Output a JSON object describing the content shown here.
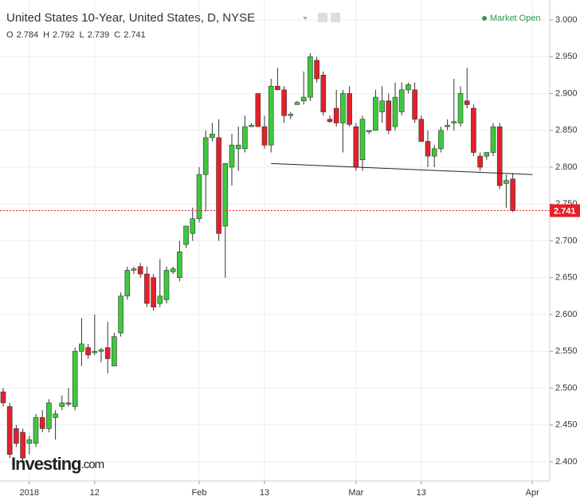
{
  "chart_data": {
    "type": "candlestick",
    "title": "United States 10-Year, United States, D, NYSE",
    "ohlc_header": [
      {
        "label": "O",
        "value": 2.784
      },
      {
        "label": "H",
        "value": 2.792
      },
      {
        "label": "L",
        "value": 2.739
      },
      {
        "label": "C",
        "value": 2.741
      }
    ],
    "status": "Market Open",
    "logo": {
      "name": "Investing",
      "suffix": ".com"
    },
    "last_price": {
      "value": 2.741,
      "label": "2.741",
      "color": "#e4202a"
    },
    "up_color": "#3cc93c",
    "down_color": "#e4202a",
    "grid": true,
    "categories": [
      null,
      null,
      null,
      null,
      "2018",
      null,
      null,
      null,
      null,
      null,
      null,
      null,
      null,
      null,
      "12",
      null,
      null,
      null,
      null,
      null,
      null,
      null,
      null,
      null,
      null,
      null,
      null,
      null,
      null,
      null,
      "Feb",
      null,
      null,
      null,
      null,
      null,
      null,
      null,
      null,
      null,
      "13",
      null,
      null,
      null,
      null,
      null,
      null,
      null,
      null,
      null,
      null,
      null,
      null,
      null,
      "Mar",
      null,
      null,
      null,
      null,
      null,
      null,
      null,
      null,
      null,
      "13",
      null,
      null,
      null,
      null,
      null,
      null,
      null,
      null,
      null,
      null,
      null,
      null,
      null,
      null,
      null,
      null,
      "Apr"
    ],
    "open": [
      2.495,
      2.475,
      2.445,
      2.44,
      2.425,
      2.425,
      2.46,
      2.445,
      2.46,
      2.475,
      2.478,
      2.475,
      2.55,
      2.555,
      2.548,
      2.55,
      2.555,
      2.53,
      2.575,
      2.625,
      2.66,
      2.665,
      2.655,
      2.65,
      2.615,
      2.62,
      2.658,
      2.65,
      2.695,
      2.71,
      2.73,
      2.79,
      2.84,
      2.84,
      2.72,
      2.8,
      2.825,
      2.825,
      2.855,
      2.9,
      2.855,
      2.83,
      2.91,
      2.905,
      2.87,
      2.885,
      2.89,
      2.895,
      2.945,
      2.925,
      2.865,
      2.88,
      2.86,
      2.9,
      2.855,
      2.81,
      2.848,
      2.85,
      2.875,
      2.89,
      2.855,
      2.875,
      2.905,
      2.905,
      2.865,
      2.835,
      2.815,
      2.825,
      2.855,
      2.86,
      2.86,
      2.89,
      2.88,
      2.815,
      2.815,
      2.82,
      2.855,
      2.778,
      2.784,
      null,
      null,
      null
    ],
    "high": [
      2.5,
      2.48,
      2.45,
      2.445,
      2.435,
      2.465,
      2.47,
      2.485,
      2.47,
      2.49,
      2.5,
      2.555,
      2.595,
      2.56,
      2.6,
      2.555,
      2.59,
      2.575,
      2.63,
      2.665,
      2.665,
      2.67,
      2.665,
      2.655,
      2.675,
      2.665,
      2.665,
      2.7,
      2.72,
      2.745,
      2.8,
      2.85,
      2.86,
      2.865,
      2.805,
      2.845,
      2.855,
      2.87,
      2.86,
      2.9,
      2.87,
      2.92,
      2.935,
      2.91,
      2.875,
      2.89,
      2.93,
      2.955,
      2.95,
      2.93,
      2.87,
      2.905,
      2.905,
      2.91,
      2.86,
      2.87,
      2.85,
      2.905,
      2.91,
      2.9,
      2.915,
      2.915,
      2.915,
      2.915,
      2.87,
      2.85,
      2.83,
      2.855,
      2.865,
      2.92,
      2.91,
      2.935,
      2.885,
      2.82,
      2.82,
      2.86,
      2.86,
      2.79,
      2.792,
      null,
      null,
      null
    ],
    "low": [
      2.475,
      2.405,
      2.42,
      2.4,
      2.41,
      2.42,
      2.44,
      2.44,
      2.43,
      2.47,
      2.475,
      2.47,
      2.53,
      2.54,
      2.545,
      2.535,
      2.52,
      2.53,
      2.57,
      2.62,
      2.655,
      2.65,
      2.61,
      2.605,
      2.61,
      2.615,
      2.655,
      2.645,
      2.69,
      2.7,
      2.725,
      2.74,
      2.835,
      2.7,
      2.65,
      2.775,
      2.795,
      2.82,
      2.855,
      2.855,
      2.825,
      2.82,
      2.905,
      2.86,
      2.865,
      2.885,
      2.885,
      2.89,
      2.915,
      2.87,
      2.86,
      2.855,
      2.82,
      2.855,
      2.795,
      2.795,
      2.845,
      2.85,
      2.86,
      2.845,
      2.85,
      2.87,
      2.9,
      2.86,
      2.835,
      2.8,
      2.8,
      2.82,
      2.85,
      2.85,
      2.855,
      2.88,
      2.815,
      2.795,
      2.81,
      2.815,
      2.77,
      2.745,
      2.739,
      null,
      null,
      null
    ],
    "close": [
      2.48,
      2.41,
      2.425,
      2.405,
      2.43,
      2.46,
      2.445,
      2.48,
      2.465,
      2.48,
      2.48,
      2.55,
      2.56,
      2.545,
      2.55,
      2.552,
      2.54,
      2.57,
      2.625,
      2.66,
      2.662,
      2.655,
      2.615,
      2.61,
      2.625,
      2.66,
      2.662,
      2.685,
      2.72,
      2.73,
      2.79,
      2.84,
      2.845,
      2.71,
      2.805,
      2.83,
      2.83,
      2.855,
      2.857,
      2.855,
      2.83,
      2.91,
      2.905,
      2.87,
      2.872,
      2.888,
      2.895,
      2.95,
      2.92,
      2.875,
      2.862,
      2.86,
      2.9,
      2.858,
      2.8,
      2.865,
      2.85,
      2.895,
      2.89,
      2.85,
      2.895,
      2.905,
      2.912,
      2.865,
      2.835,
      2.815,
      2.825,
      2.85,
      2.857,
      2.862,
      2.9,
      2.885,
      2.82,
      2.8,
      2.82,
      2.855,
      2.775,
      2.782,
      2.741,
      null,
      null,
      null
    ],
    "ylim": [
      2.374,
      3.027
    ],
    "yticks": [
      {
        "value": 2.4,
        "label": "2.400"
      },
      {
        "value": 2.45,
        "label": "2.450"
      },
      {
        "value": 2.5,
        "label": "2.500"
      },
      {
        "value": 2.55,
        "label": "2.550"
      },
      {
        "value": 2.6,
        "label": "2.600"
      },
      {
        "value": 2.65,
        "label": "2.650"
      },
      {
        "value": 2.7,
        "label": "2.700"
      },
      {
        "value": 2.75,
        "label": "2.750"
      },
      {
        "value": 2.8,
        "label": "2.800"
      },
      {
        "value": 2.85,
        "label": "2.850"
      },
      {
        "value": 2.9,
        "label": "2.900"
      },
      {
        "value": 2.95,
        "label": "2.950"
      },
      {
        "value": 3.0,
        "label": "3.000"
      }
    ],
    "trendline": {
      "start": [
        41,
        2.805
      ],
      "end": [
        81,
        2.79
      ]
    }
  }
}
